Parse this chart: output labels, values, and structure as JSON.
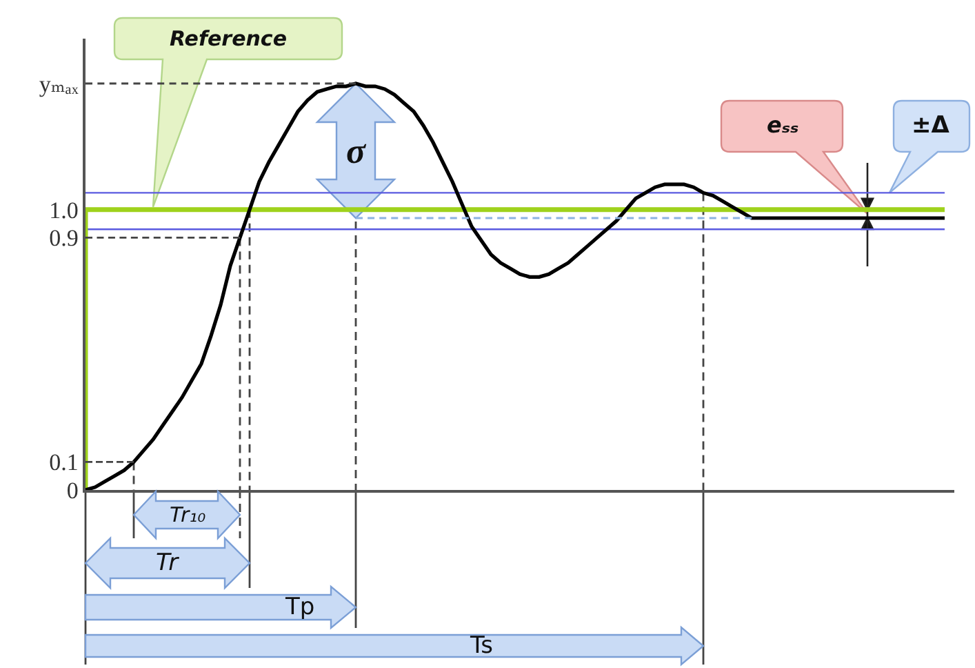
{
  "chart_data": {
    "type": "line",
    "categories": [
      null,
      null,
      null,
      null,
      null,
      null,
      null,
      null,
      null,
      null,
      null,
      null,
      null,
      null,
      null,
      null,
      null,
      null,
      null,
      null,
      null,
      null,
      null,
      null,
      null,
      null,
      null,
      null,
      null,
      null,
      null,
      null,
      null,
      null,
      null,
      null,
      null,
      null,
      null,
      null,
      null,
      null,
      null,
      null,
      null,
      null,
      null,
      null,
      null,
      null,
      null,
      null,
      null,
      null,
      null,
      null,
      null,
      null,
      null,
      null,
      null,
      null,
      null,
      null,
      null,
      null,
      null,
      null,
      null,
      null,
      null,
      null,
      null,
      null,
      null,
      null,
      null,
      null,
      null,
      null,
      null,
      null,
      null,
      null,
      null,
      null,
      null,
      null,
      null,
      null
    ],
    "series": [
      {
        "type": "step",
        "color": "#9fd21c",
        "values": [
          0,
          1,
          1,
          1,
          1,
          1,
          1,
          1,
          1,
          1,
          1,
          1,
          1,
          1,
          1,
          1,
          1,
          1,
          1,
          1,
          1,
          1,
          1,
          1,
          1,
          1,
          1,
          1,
          1,
          1,
          1,
          1,
          1,
          1,
          1,
          1,
          1,
          1,
          1,
          1,
          1,
          1,
          1,
          1,
          1,
          1,
          1,
          1,
          1,
          1,
          1,
          1,
          1,
          1,
          1,
          1,
          1,
          1,
          1,
          1,
          1,
          1,
          1,
          1,
          1,
          1,
          1,
          1,
          1,
          1,
          1,
          1,
          1,
          1,
          1,
          1,
          1,
          1,
          1,
          1,
          1,
          1,
          1,
          1,
          1,
          1,
          1,
          1,
          1,
          1
        ]
      },
      {
        "color": "#000000",
        "values": [
          0,
          0.01,
          0.03,
          0.05,
          0.07,
          0.1,
          0.14,
          0.18,
          0.23,
          0.28,
          0.33,
          0.39,
          0.45,
          0.55,
          0.66,
          0.8,
          0.9,
          1.0,
          1.1,
          1.17,
          1.23,
          1.29,
          1.35,
          1.39,
          1.42,
          1.43,
          1.44,
          1.44,
          1.45,
          1.44,
          1.44,
          1.43,
          1.41,
          1.38,
          1.35,
          1.3,
          1.24,
          1.17,
          1.1,
          1.02,
          0.94,
          0.89,
          0.84,
          0.81,
          0.79,
          0.77,
          0.76,
          0.76,
          0.77,
          0.79,
          0.81,
          0.84,
          0.87,
          0.9,
          0.93,
          0.96,
          1.0,
          1.04,
          1.06,
          1.08,
          1.09,
          1.09,
          1.09,
          1.08,
          1.06,
          1.05,
          1.03,
          1.01,
          0.99,
          0.97,
          0.97,
          0.97,
          0.97,
          0.97,
          0.97,
          0.97,
          0.97,
          0.97,
          0.97,
          0.97,
          0.97,
          0.97,
          0.97,
          0.97,
          0.97,
          0.97,
          0.97,
          0.97,
          0.97,
          0.97
        ]
      },
      {
        "color": "#8db3e2",
        "line_style": "dashed",
        "values": [
          null,
          null,
          null,
          null,
          null,
          null,
          null,
          null,
          null,
          null,
          null,
          null,
          null,
          null,
          null,
          null,
          null,
          null,
          null,
          null,
          null,
          null,
          null,
          null,
          null,
          null,
          null,
          null,
          0.97,
          0.97,
          0.97,
          0.97,
          0.97,
          0.97,
          0.97,
          0.97,
          0.97,
          0.97,
          0.97,
          0.97,
          0.97,
          0.97,
          0.97,
          0.97,
          0.97,
          0.97,
          0.97,
          0.97,
          0.97,
          0.97,
          0.97,
          0.97,
          0.97,
          0.97,
          0.97,
          0.97,
          0.97,
          0.97,
          0.97,
          0.97,
          0.97,
          0.97,
          0.97,
          0.97,
          0.97,
          0.97,
          0.97,
          0.97,
          0.97,
          0.97,
          null,
          null,
          null,
          null,
          null,
          null,
          null,
          null,
          null,
          null,
          null,
          null,
          null,
          null,
          null,
          null,
          null,
          null,
          null,
          null
        ]
      },
      {
        "color": "#444444",
        "line_style": "dashed",
        "values": [
          0.1,
          0.1,
          0.1,
          0.1,
          0.1,
          0.1,
          null,
          null,
          null,
          null,
          null,
          null,
          null,
          null,
          null,
          null,
          null,
          null,
          null,
          null,
          null,
          null,
          null,
          null,
          null,
          null,
          null,
          null,
          null,
          null,
          null,
          null,
          null,
          null,
          null,
          null,
          null,
          null,
          null,
          null,
          null,
          null,
          null,
          null,
          null,
          null,
          null,
          null,
          null,
          null,
          null,
          null,
          null,
          null,
          null,
          null,
          null,
          null,
          null,
          null,
          null,
          null,
          null,
          null,
          null,
          null,
          null,
          null,
          null,
          null,
          null,
          null,
          null,
          null,
          null,
          null,
          null,
          null,
          null,
          null,
          null,
          null,
          null,
          null,
          null,
          null,
          null,
          null,
          null,
          null
        ]
      },
      {
        "color": "#444444",
        "line_style": "dashed",
        "values": [
          0.9,
          0.9,
          0.9,
          0.9,
          0.9,
          0.9,
          0.9,
          0.9,
          0.9,
          0.9,
          0.9,
          0.9,
          0.9,
          0.9,
          0.9,
          0.9,
          0.9,
          null,
          null,
          null,
          null,
          null,
          null,
          null,
          null,
          null,
          null,
          null,
          null,
          null,
          null,
          null,
          null,
          null,
          null,
          null,
          null,
          null,
          null,
          null,
          null,
          null,
          null,
          null,
          null,
          null,
          null,
          null,
          null,
          null,
          null,
          null,
          null,
          null,
          null,
          null,
          null,
          null,
          null,
          null,
          null,
          null,
          null,
          null,
          null,
          null,
          null,
          null,
          null,
          null,
          null,
          null,
          null,
          null,
          null,
          null,
          null,
          null,
          null,
          null,
          null,
          null,
          null,
          null,
          null,
          null,
          null,
          null,
          null,
          null
        ]
      },
      {
        "color": "#444444",
        "line_style": "dashed",
        "values": [
          1.45,
          1.45,
          1.45,
          1.45,
          1.45,
          1.45,
          1.45,
          1.45,
          1.45,
          1.45,
          1.45,
          1.45,
          1.45,
          1.45,
          1.45,
          1.45,
          1.45,
          1.45,
          1.45,
          1.45,
          1.45,
          1.45,
          1.45,
          1.45,
          1.45,
          1.45,
          1.45,
          1.45,
          1.45,
          null,
          null,
          null,
          null,
          null,
          null,
          null,
          null,
          null,
          null,
          null,
          null,
          null,
          null,
          null,
          null,
          null,
          null,
          null,
          null,
          null,
          null,
          null,
          null,
          null,
          null,
          null,
          null,
          null,
          null,
          null,
          null,
          null,
          null,
          null,
          null,
          null,
          null,
          null,
          null,
          null,
          null,
          null,
          null,
          null,
          null,
          null,
          null,
          null,
          null,
          null,
          null,
          null,
          null,
          null,
          null,
          null,
          null,
          null,
          null,
          null
        ]
      }
    ],
    "ylim": [
      0,
      1.61
    ],
    "yticks": [
      0,
      0.1,
      0.9,
      {
        "value": 1,
        "label": "1.0"
      },
      {
        "value": 1.45,
        "label": "yₘₐₓ"
      }
    ],
    "ref_lines": [
      {
        "axis": "y",
        "value": 1.06,
        "color": "#5a5ae0"
      },
      {
        "axis": "y",
        "value": 0.93,
        "color": "#5a5ae0"
      }
    ],
    "annotations": [
      "Reference",
      "σ",
      "eₛₛ",
      "±Δ",
      "Tr₁₀",
      "Tr",
      "Tp",
      "Ts"
    ]
  }
}
